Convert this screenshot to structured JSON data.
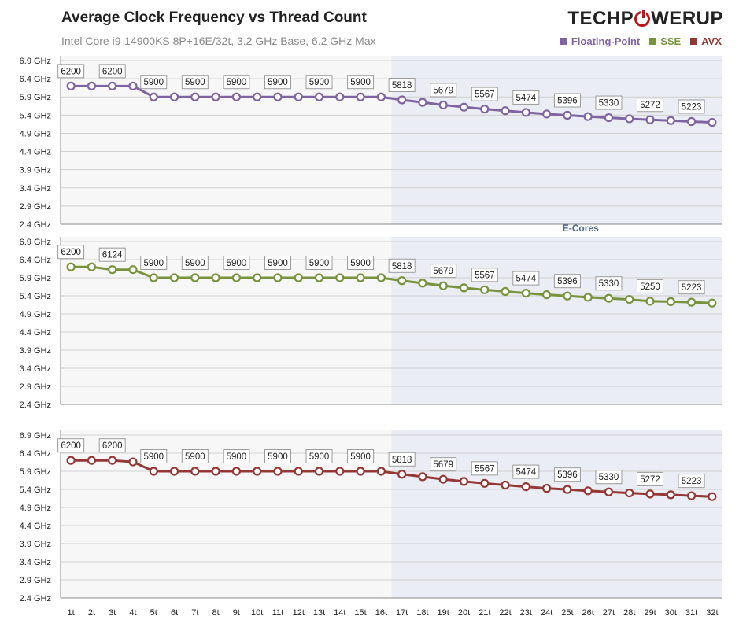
{
  "header": {
    "title": "Average Clock Frequency vs Thread Count",
    "subtitle": "Intel Core i9-14900KS 8P+16E/32t, 3.2 GHz Base, 6.2 GHz Max",
    "logo": {
      "left": "TECHP",
      "right": "WERUP"
    }
  },
  "colors": {
    "Floating-Point": "#8064a2",
    "SSE": "#77933c",
    "AVX": "#953735",
    "ecore_shade": "#eaedf3",
    "ecore_label": "#4f6b8f"
  },
  "ecore_label": "E-Cores",
  "chart_data": {
    "type": "line",
    "x": [
      "1t",
      "2t",
      "3t",
      "4t",
      "5t",
      "6t",
      "7t",
      "8t",
      "9t",
      "10t",
      "11t",
      "12t",
      "13t",
      "14t",
      "15t",
      "16t",
      "17t",
      "18t",
      "19t",
      "20t",
      "21t",
      "22t",
      "23t",
      "24t",
      "25t",
      "26t",
      "27t",
      "28t",
      "29t",
      "30t",
      "31t",
      "32t"
    ],
    "y_ticks": [
      "2.4 GHz",
      "2.9 GHz",
      "3.4 GHz",
      "3.9 GHz",
      "4.4 GHz",
      "4.9 GHz",
      "5.4 GHz",
      "5.9 GHz",
      "6.4 GHz",
      "6.9 GHz"
    ],
    "ylim": [
      2400,
      6900
    ],
    "ecore_start": "17t",
    "series": [
      {
        "name": "Floating-Point",
        "values": [
          6200,
          6200,
          6200,
          6200,
          5900,
          5900,
          5900,
          5900,
          5900,
          5900,
          5900,
          5900,
          5900,
          5900,
          5900,
          5900,
          5818,
          5750,
          5679,
          5620,
          5567,
          5520,
          5474,
          5430,
          5396,
          5360,
          5330,
          5300,
          5272,
          5250,
          5223,
          5200
        ],
        "labels": [
          "6200",
          "",
          "6200",
          "",
          "5900",
          "",
          "5900",
          "",
          "5900",
          "",
          "5900",
          "",
          "5900",
          "",
          "5900",
          "",
          "5818",
          "",
          "5679",
          "",
          "5567",
          "",
          "5474",
          "",
          "5396",
          "",
          "5330",
          "",
          "5272",
          "",
          "5223",
          ""
        ]
      },
      {
        "name": "SSE",
        "values": [
          6200,
          6200,
          6124,
          6124,
          5900,
          5900,
          5900,
          5900,
          5900,
          5900,
          5900,
          5900,
          5900,
          5900,
          5900,
          5900,
          5818,
          5750,
          5679,
          5620,
          5567,
          5520,
          5474,
          5430,
          5396,
          5360,
          5330,
          5300,
          5250,
          5240,
          5223,
          5200
        ],
        "labels": [
          "6200",
          "",
          "6124",
          "",
          "5900",
          "",
          "5900",
          "",
          "5900",
          "",
          "5900",
          "",
          "5900",
          "",
          "5900",
          "",
          "5818",
          "",
          "5679",
          "",
          "5567",
          "",
          "5474",
          "",
          "5396",
          "",
          "5330",
          "",
          "5250",
          "",
          "5223",
          ""
        ]
      },
      {
        "name": "AVX",
        "values": [
          6200,
          6200,
          6200,
          6160,
          5900,
          5900,
          5900,
          5900,
          5900,
          5900,
          5900,
          5900,
          5900,
          5900,
          5900,
          5900,
          5818,
          5750,
          5679,
          5620,
          5567,
          5520,
          5474,
          5430,
          5396,
          5360,
          5330,
          5300,
          5272,
          5250,
          5223,
          5200
        ],
        "labels": [
          "6200",
          "",
          "6200",
          "",
          "5900",
          "",
          "5900",
          "",
          "5900",
          "",
          "5900",
          "",
          "5900",
          "",
          "5900",
          "",
          "5818",
          "",
          "5679",
          "",
          "5567",
          "",
          "5474",
          "",
          "5396",
          "",
          "5330",
          "",
          "5272",
          "",
          "5223",
          ""
        ]
      }
    ]
  }
}
